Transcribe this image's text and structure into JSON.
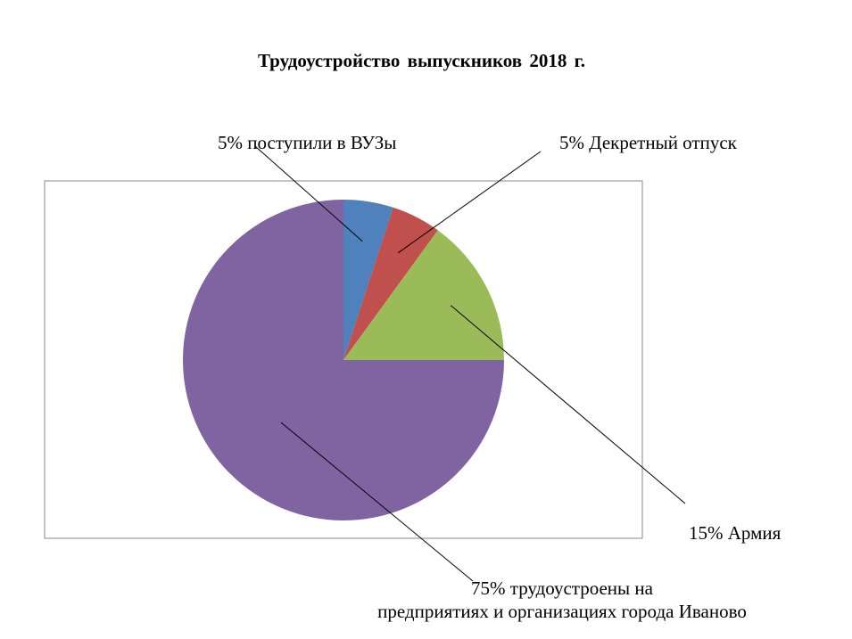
{
  "chart_data": {
    "type": "pie",
    "title": "Трудоустройство выпускников 2018 г.",
    "slices": [
      {
        "label": "поступили в ВУЗы",
        "value": 5,
        "label_text": "5%  поступили в ВУЗы",
        "color": "#4F81BD"
      },
      {
        "label": "Декретный отпуск",
        "value": 5,
        "label_text": "5% Декретный отпуск",
        "color": "#C0504D"
      },
      {
        "label": "Армия",
        "value": 15,
        "label_text": "15% Армия",
        "color": "#9BBB59"
      },
      {
        "label": "трудоустроены на предприятиях и организациях города Иваново",
        "value": 75,
        "label_lines": [
          "75% трудоустроены на",
          "предприятиях и организациях города Иваново"
        ],
        "color": "#8064A2"
      }
    ],
    "legend": "none",
    "start_angle": "12 o'clock, clockwise"
  }
}
